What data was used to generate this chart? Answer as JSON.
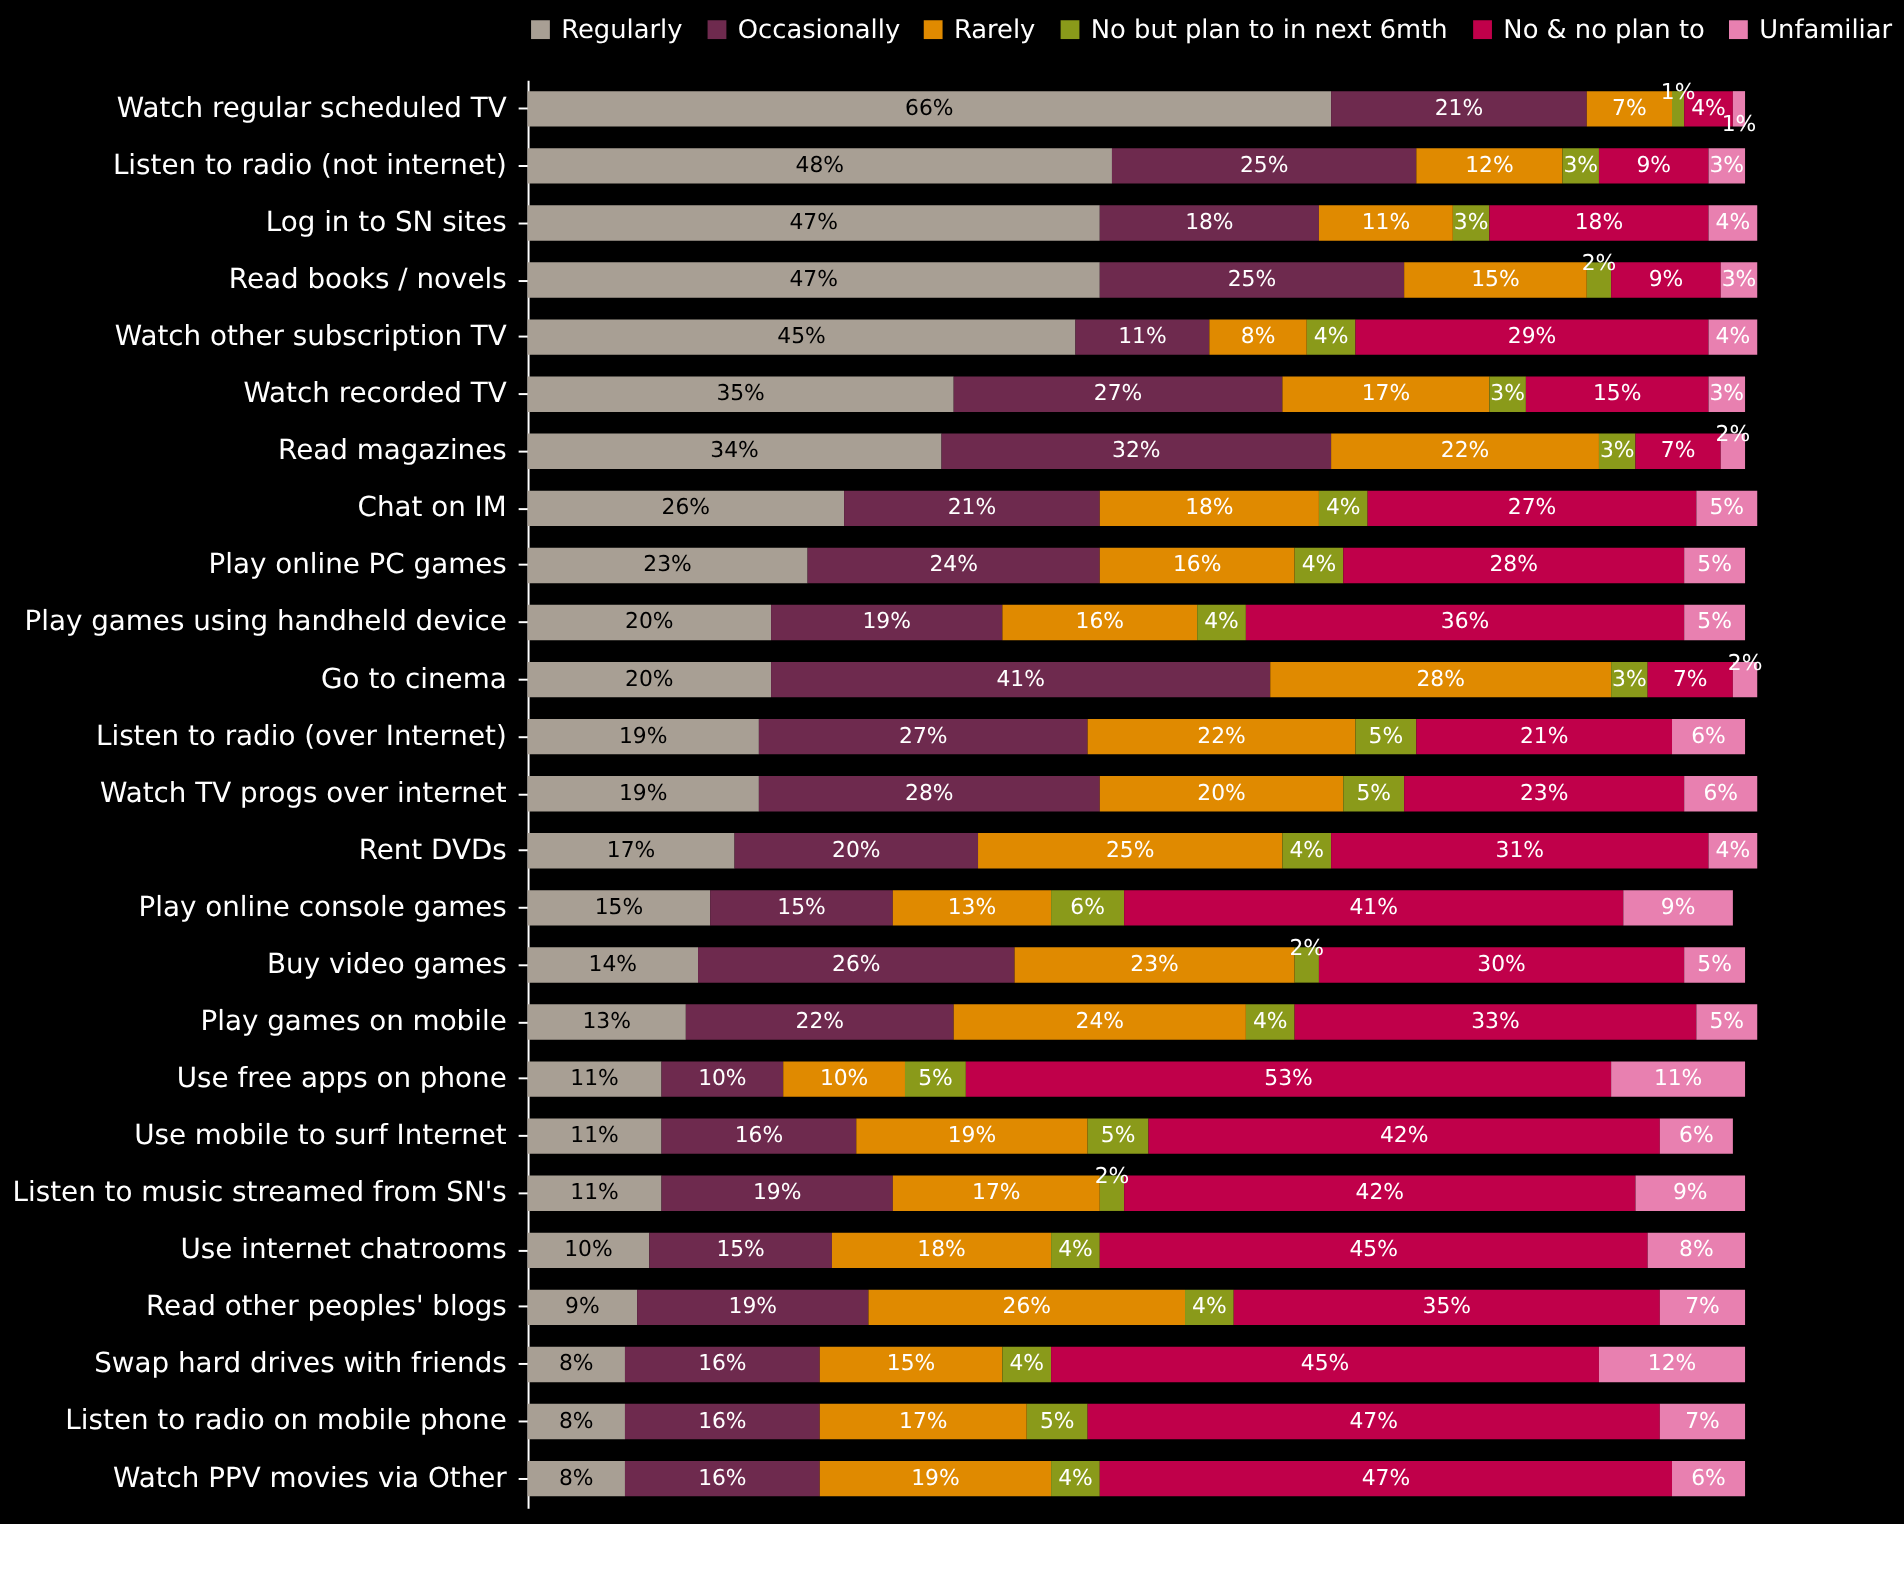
{
  "chart_data": {
    "type": "bar",
    "orientation": "horizontal",
    "stacked": true,
    "legend": "top",
    "tick_labels": "y",
    "grid": false,
    "categories": [
      "Watch regular scheduled TV",
      "Listen to radio (not internet)",
      "Log in to SN sites",
      "Read books / novels",
      "Watch other subscription TV",
      "Watch recorded TV",
      "Read magazines",
      "Chat on IM",
      "Play online PC games",
      "Play games using handheld device",
      "Go to cinema",
      "Listen to radio (over Internet)",
      "Watch TV progs over internet",
      "Rent DVDs",
      "Play online console games",
      "Buy video games",
      "Play games on mobile",
      "Use free apps on phone",
      "Use mobile to surf Internet",
      "Listen to music streamed from SN's",
      "Use internet chatrooms",
      "Read other peoples' blogs",
      "Swap hard drives with friends",
      "Listen to radio on mobile phone",
      "Watch PPV movies via Other"
    ],
    "series": [
      {
        "name": "Regularly",
        "color": "#a89f94",
        "values": [
          66,
          48,
          47,
          47,
          45,
          35,
          34,
          26,
          23,
          20,
          20,
          19,
          19,
          17,
          15,
          14,
          13,
          11,
          11,
          11,
          10,
          9,
          8,
          8,
          8
        ],
        "value_labels": [
          "66%",
          "48%",
          "47%",
          "47%",
          "45%",
          "35%",
          "34%",
          "26%",
          "23%",
          "20%",
          "20%",
          "19%",
          "19%",
          "17%",
          "15%",
          "14%",
          "13%",
          "11%",
          "11%",
          "11%",
          "10%",
          "9%",
          "8%",
          "8%",
          "8%"
        ]
      },
      {
        "name": "Occasionally",
        "color": "#6e2a4e",
        "values": [
          21,
          25,
          18,
          25,
          11,
          27,
          32,
          21,
          24,
          19,
          41,
          27,
          28,
          20,
          15,
          26,
          22,
          10,
          16,
          19,
          15,
          19,
          16,
          16,
          16
        ],
        "value_labels": [
          "21%",
          "25%",
          "18%",
          "25%",
          "11%",
          "27%",
          "32%",
          "21%",
          "24%",
          "19%",
          "41%",
          "27%",
          "28%",
          "20%",
          "15%",
          "26%",
          "22%",
          "10%",
          "16%",
          "19%",
          "15%",
          "19%",
          "16%",
          "16%",
          "16%"
        ]
      },
      {
        "name": "Rarely",
        "color": "#e08a00",
        "values": [
          7,
          12,
          11,
          15,
          8,
          17,
          22,
          18,
          16,
          16,
          28,
          22,
          20,
          25,
          13,
          23,
          24,
          10,
          19,
          17,
          18,
          26,
          15,
          17,
          19
        ],
        "value_labels": [
          "7%",
          "12%",
          "11%",
          "15%",
          "8%",
          "17%",
          "22%",
          "18%",
          "16%",
          "16%",
          "28%",
          "22%",
          "20%",
          "25%",
          "13%",
          "23%",
          "24%",
          "10%",
          "19%",
          "17%",
          "18%",
          "26%",
          "15%",
          "17%",
          "19%"
        ]
      },
      {
        "name": "No but plan to in next 6mth",
        "color": "#8a9a1a",
        "values": [
          1,
          3,
          3,
          2,
          4,
          3,
          3,
          4,
          4,
          4,
          3,
          5,
          5,
          4,
          6,
          2,
          4,
          5,
          5,
          2,
          4,
          4,
          4,
          5,
          4
        ],
        "value_labels": [
          "1%",
          "3%",
          "3%",
          "2%",
          "4%",
          "3%",
          "3%",
          "4%",
          "4%",
          "4%",
          "3%",
          "5%",
          "5%",
          "4%",
          "6%",
          "2%",
          "4%",
          "5%",
          "5%",
          "2%",
          "4%",
          "4%",
          "4%",
          "5%",
          "4%"
        ]
      },
      {
        "name": "No & no plan to",
        "color": "#c0004a",
        "values": [
          4,
          9,
          18,
          9,
          29,
          15,
          7,
          27,
          28,
          36,
          7,
          21,
          23,
          31,
          41,
          30,
          33,
          53,
          42,
          42,
          45,
          35,
          45,
          47,
          47
        ],
        "value_labels": [
          "4%",
          "9%",
          "18%",
          "9%",
          "29%",
          "15%",
          "7%",
          "27%",
          "28%",
          "36%",
          "7%",
          "21%",
          "23%",
          "31%",
          "41%",
          "30%",
          "33%",
          "53%",
          "42%",
          "42%",
          "45%",
          "35%",
          "45%",
          "47%",
          "47%"
        ]
      },
      {
        "name": "Unfamiliar",
        "color": "#e880b0",
        "values": [
          1,
          3,
          4,
          3,
          4,
          3,
          2,
          5,
          5,
          5,
          2,
          6,
          6,
          4,
          9,
          5,
          5,
          11,
          6,
          9,
          8,
          7,
          12,
          7,
          6
        ],
        "value_labels": [
          "1%",
          "3%",
          "4%",
          "3%",
          "4%",
          "3%",
          "2%",
          "5%",
          "5%",
          "5%",
          "2%",
          "6%",
          "6%",
          "4%",
          "9%",
          "5%",
          "5%",
          "11%",
          "6%",
          "9%",
          "8%",
          "7%",
          "12%",
          "7%",
          "6%"
        ]
      }
    ]
  }
}
